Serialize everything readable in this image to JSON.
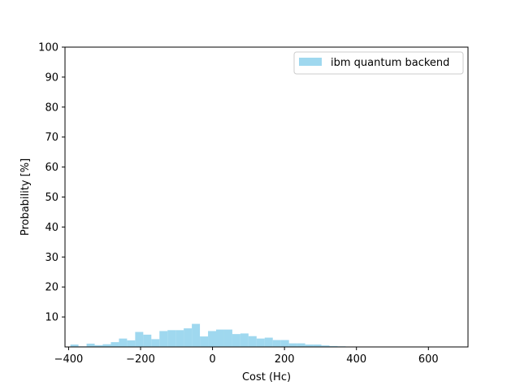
{
  "chart_data": {
    "type": "bar",
    "title": "",
    "xlabel": "Cost (Hc)",
    "ylabel": "Probability [%]",
    "xlim": [
      -410,
      710
    ],
    "ylim": [
      0,
      100
    ],
    "xticks": [
      -400,
      -200,
      0,
      200,
      400,
      600
    ],
    "xtick_labels": [
      "−400",
      "−200",
      "0",
      "200",
      "400",
      "600"
    ],
    "yticks": [
      10,
      20,
      30,
      40,
      50,
      60,
      70,
      80,
      90,
      100
    ],
    "ytick_labels": [
      "10",
      "20",
      "30",
      "40",
      "50",
      "60",
      "70",
      "80",
      "90",
      "100"
    ],
    "grid": false,
    "legend_position": "top-right",
    "bar_color": "#87ceeb",
    "bar_opacity": 0.8,
    "bin_width": 22.5,
    "series": [
      {
        "name": "ibm quantum backend",
        "bins": [
          {
            "x": -395,
            "value": 0.8
          },
          {
            "x": -372.5,
            "value": 0.2
          },
          {
            "x": -350,
            "value": 1.1
          },
          {
            "x": -327.5,
            "value": 0.6
          },
          {
            "x": -305,
            "value": 0.9
          },
          {
            "x": -282.5,
            "value": 1.6
          },
          {
            "x": -260,
            "value": 2.8
          },
          {
            "x": -237.5,
            "value": 2.2
          },
          {
            "x": -215,
            "value": 5.0
          },
          {
            "x": -192.5,
            "value": 4.1
          },
          {
            "x": -170,
            "value": 2.6
          },
          {
            "x": -147.5,
            "value": 5.3
          },
          {
            "x": -125,
            "value": 5.6
          },
          {
            "x": -102.5,
            "value": 5.6
          },
          {
            "x": -80,
            "value": 6.2
          },
          {
            "x": -57.5,
            "value": 7.7
          },
          {
            "x": -35,
            "value": 3.5
          },
          {
            "x": -12.5,
            "value": 5.3
          },
          {
            "x": 10,
            "value": 5.8
          },
          {
            "x": 32.5,
            "value": 5.8
          },
          {
            "x": 55,
            "value": 4.3
          },
          {
            "x": 77.5,
            "value": 4.5
          },
          {
            "x": 100,
            "value": 3.6
          },
          {
            "x": 122.5,
            "value": 2.8
          },
          {
            "x": 145,
            "value": 3.1
          },
          {
            "x": 167.5,
            "value": 2.3
          },
          {
            "x": 190,
            "value": 2.3
          },
          {
            "x": 212.5,
            "value": 1.2
          },
          {
            "x": 235,
            "value": 1.2
          },
          {
            "x": 257.5,
            "value": 0.8
          },
          {
            "x": 280,
            "value": 0.8
          },
          {
            "x": 302.5,
            "value": 0.5
          },
          {
            "x": 325,
            "value": 0.3
          },
          {
            "x": 347.5,
            "value": 0.2
          }
        ]
      }
    ]
  }
}
